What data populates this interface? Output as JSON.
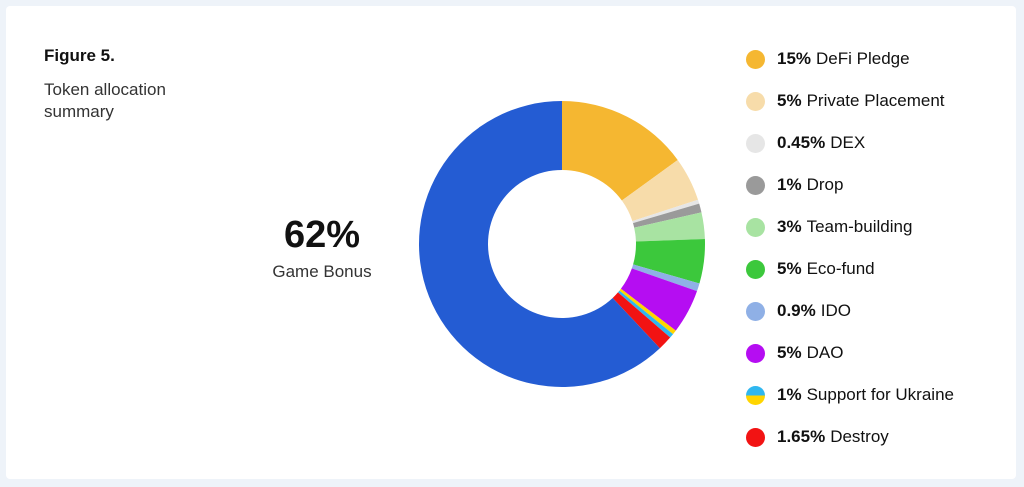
{
  "figure": {
    "title": "Figure 5.",
    "subtitle": "Token allocation summary"
  },
  "center": {
    "pct": "62%",
    "label": "Game Bonus"
  },
  "chart_data": {
    "type": "pie",
    "donut": true,
    "start_angle_deg": 0,
    "direction": "clockwise",
    "slices": [
      {
        "value": 15,
        "color": "#F5B731"
      },
      {
        "value": 5,
        "color": "#F7DCAA"
      },
      {
        "value": 0.45,
        "color": "#E6E6E6"
      },
      {
        "value": 1,
        "color": "#9A9A9A"
      },
      {
        "value": 3,
        "color": "#A8E3A2"
      },
      {
        "value": 5,
        "color": "#3CC83C"
      },
      {
        "value": 0.9,
        "color": "#8FB0E6"
      },
      {
        "value": 5,
        "color": "#B50DF2"
      },
      {
        "value": 0.5,
        "color": "#FFD500"
      },
      {
        "value": 0.5,
        "color": "#2FB7F0"
      },
      {
        "value": 1.65,
        "color": "#F21313"
      },
      {
        "value": 62,
        "color": "#245CD3"
      }
    ],
    "legend_placement": "right",
    "legend": [
      {
        "pct": "15%",
        "label": "DeFi Pledge",
        "color": "#F5B731"
      },
      {
        "pct": "5%",
        "label": "Private Placement",
        "color": "#F7DCAA"
      },
      {
        "pct": "0.45%",
        "label": "DEX",
        "color": "#E6E6E6"
      },
      {
        "pct": "1%",
        "label": "Drop",
        "color": "#9A9A9A"
      },
      {
        "pct": "3%",
        "label": "Team-building",
        "color": "#A8E3A2"
      },
      {
        "pct": "5%",
        "label": "Eco-fund",
        "color": "#3CC83C"
      },
      {
        "pct": "0.9%",
        "label": "IDO",
        "color": "#8FB0E6"
      },
      {
        "pct": "5%",
        "label": "DAO",
        "color": "#B50DF2"
      },
      {
        "pct": "1%",
        "label": "Support for Ukraine",
        "colors": [
          "#2FB7F0",
          "#FFD500"
        ]
      },
      {
        "pct": "1.65%",
        "label": "Destroy",
        "color": "#F21313"
      }
    ]
  }
}
